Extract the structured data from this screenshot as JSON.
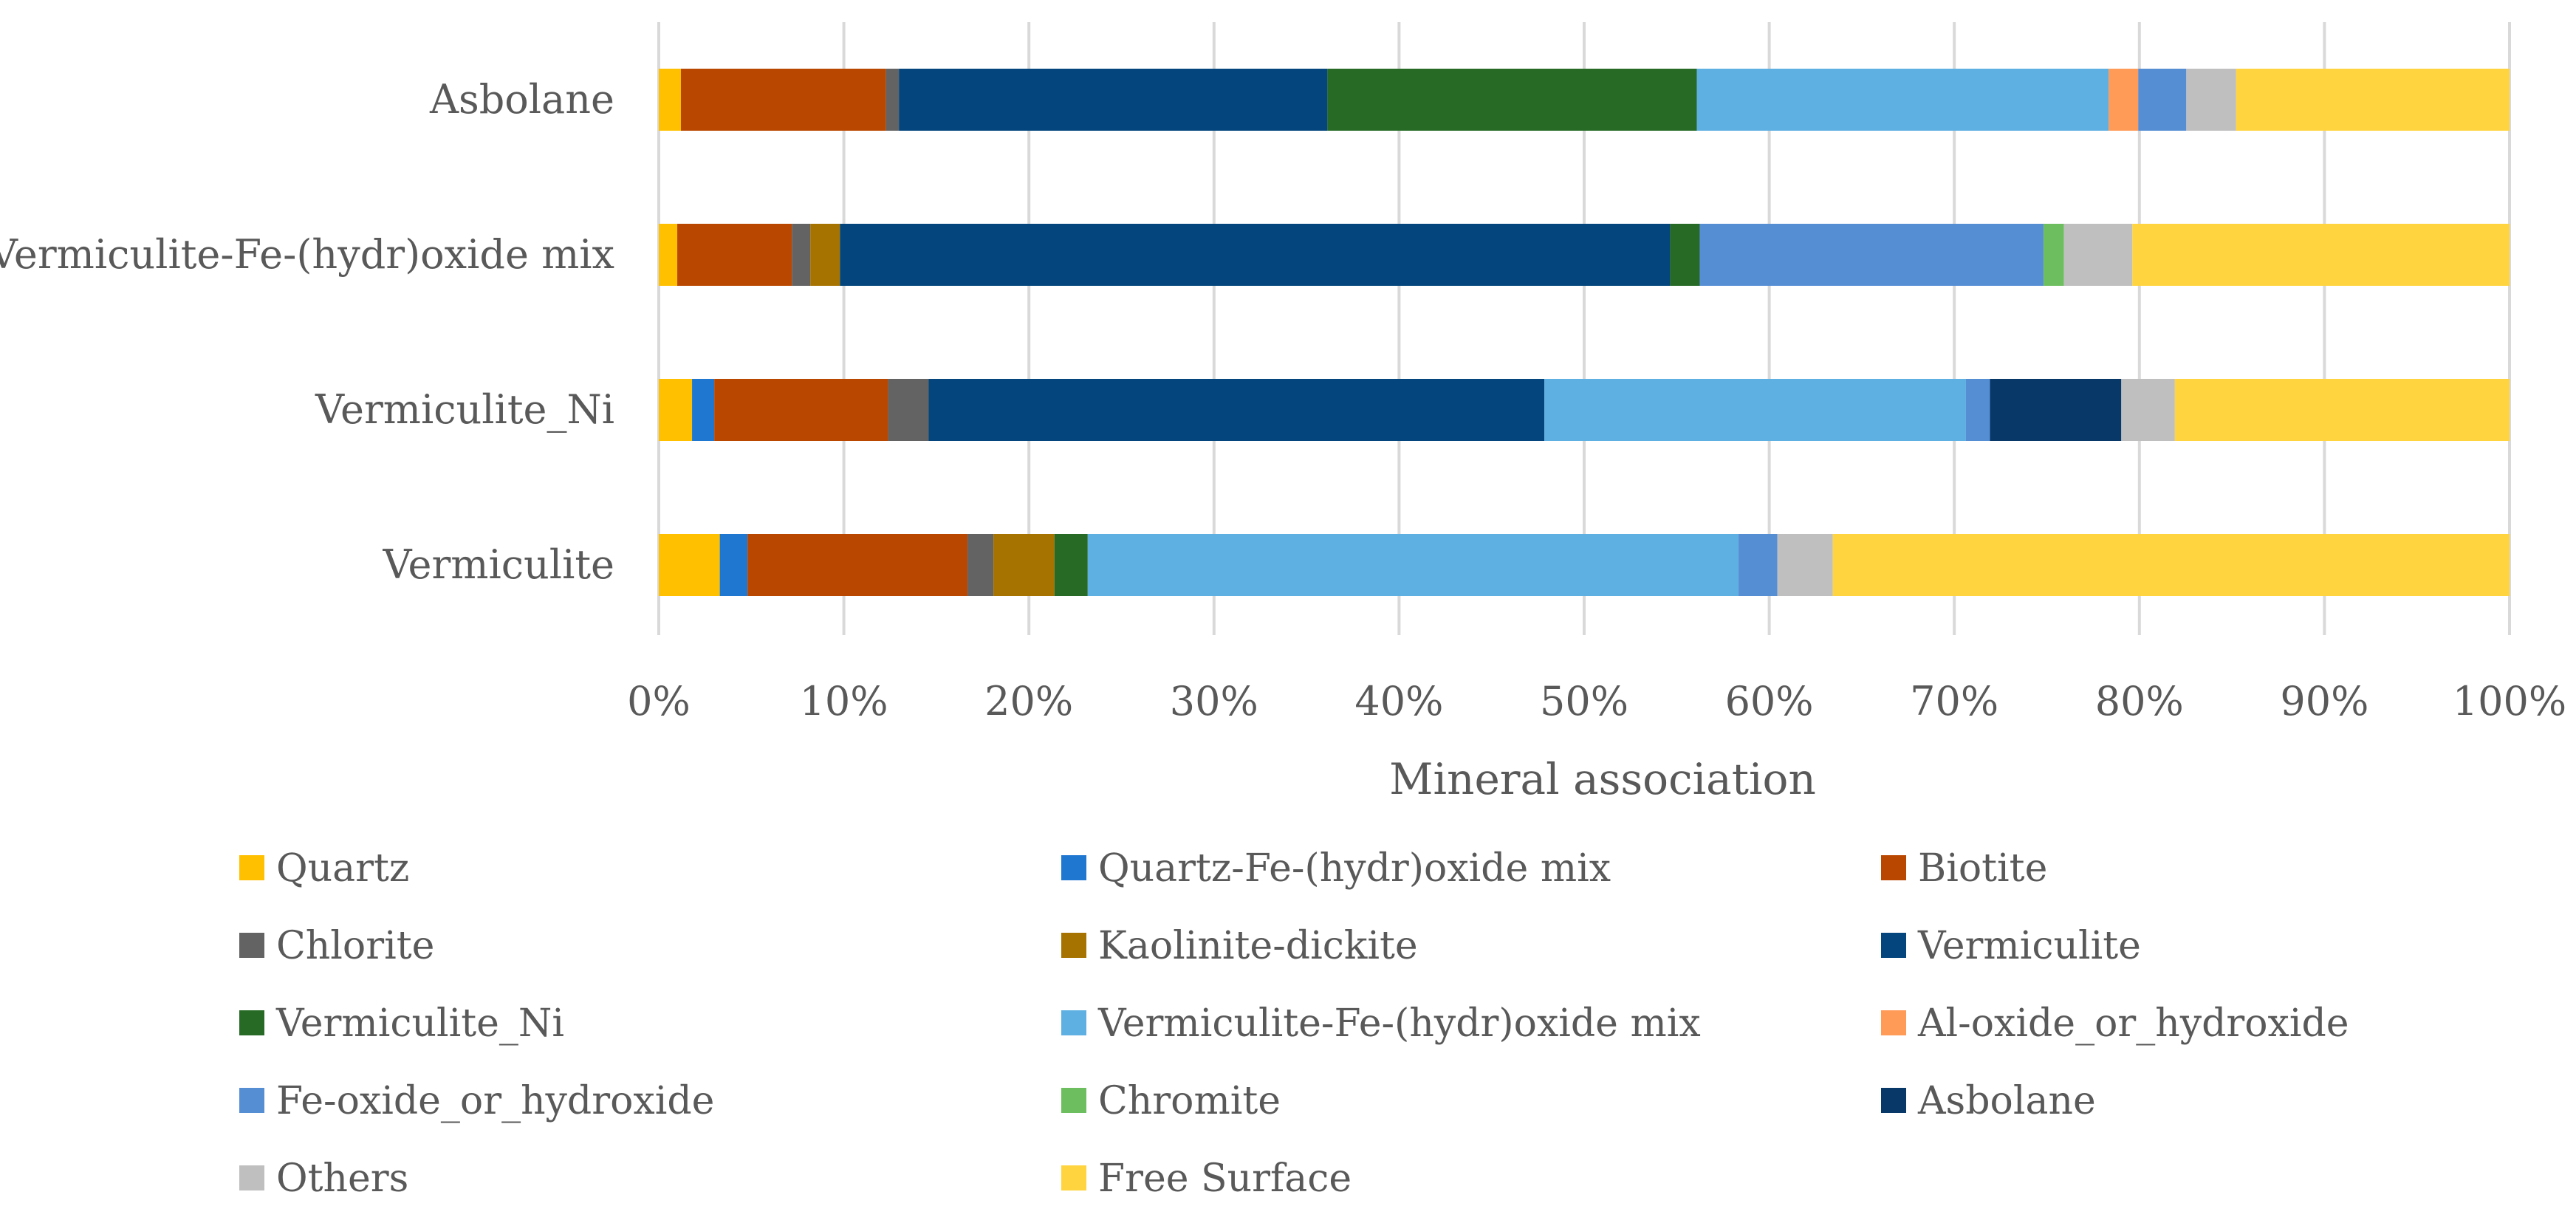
{
  "chart_data": {
    "type": "bar",
    "orientation": "horizontal",
    "stacked": "percent",
    "title": "",
    "xlabel": "Mineral association",
    "ylabel": "",
    "xlim": [
      0,
      100
    ],
    "xticks": [
      "0%",
      "10%",
      "20%",
      "30%",
      "40%",
      "50%",
      "60%",
      "70%",
      "80%",
      "90%",
      "100%"
    ],
    "grid": true,
    "legend_position": "bottom",
    "categories": [
      "Asbolane",
      "Vermiculite-Fe-(hydr)oxide mix",
      "Vermiculite_Ni",
      "Vermiculite"
    ],
    "series": [
      {
        "name": "Quartz",
        "color": "#FFC000",
        "values": [
          1.2,
          1.0,
          1.8,
          3.3
        ]
      },
      {
        "name": "Quartz-Fe-(hydr)oxide mix",
        "color": "#1F77D0",
        "values": [
          0.0,
          0.0,
          1.2,
          1.5
        ]
      },
      {
        "name": "Biotite",
        "color": "#B94700",
        "values": [
          11.1,
          6.2,
          9.4,
          11.9
        ]
      },
      {
        "name": "Chlorite",
        "color": "#636363",
        "values": [
          0.7,
          1.0,
          2.2,
          1.4
        ]
      },
      {
        "name": "Kaolinite-dickite",
        "color": "#A67300",
        "values": [
          0.0,
          1.6,
          0.0,
          3.3
        ]
      },
      {
        "name": "Vermiculite",
        "color": "#03457C",
        "values": [
          23.2,
          44.9,
          33.3,
          0.0
        ]
      },
      {
        "name": "Vermiculite_Ni",
        "color": "#276A25",
        "values": [
          20.0,
          1.6,
          0.0,
          1.8
        ]
      },
      {
        "name": "Vermiculite-Fe-(hydr)oxide mix",
        "color": "#5FB0E2",
        "values": [
          22.3,
          0.0,
          22.8,
          35.2
        ]
      },
      {
        "name": "Al-oxide_or_hydroxide",
        "color": "#FF9A57",
        "values": [
          1.6,
          0.0,
          0.0,
          0.0
        ]
      },
      {
        "name": "Fe-oxide_or_hydroxide",
        "color": "#568ED4",
        "values": [
          2.6,
          18.6,
          1.3,
          2.1
        ]
      },
      {
        "name": "Chromite",
        "color": "#6DBE5E",
        "values": [
          0.0,
          1.1,
          0.0,
          0.0
        ]
      },
      {
        "name": "Asbolane",
        "color": "#073867",
        "values": [
          0.0,
          0.0,
          7.1,
          0.0
        ]
      },
      {
        "name": "Others",
        "color": "#BFBFBF",
        "values": [
          2.7,
          3.7,
          2.9,
          3.0
        ]
      },
      {
        "name": "Free Surface",
        "color": "#FFD43F",
        "values": [
          14.8,
          20.4,
          18.1,
          36.6
        ]
      }
    ]
  }
}
